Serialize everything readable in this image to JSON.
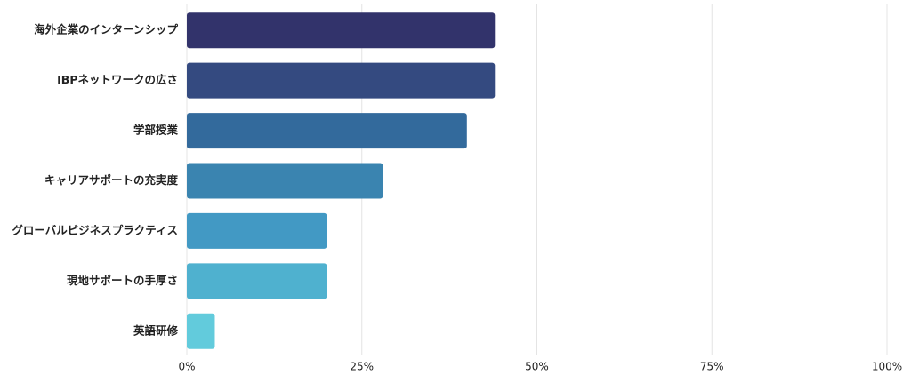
{
  "chart_data": {
    "type": "hbar",
    "categories": [
      "海外企業のインターンシップ",
      "IBPネットワークの広さ",
      "学部授業",
      "キャリアサポートの充実度",
      "グローバルビジネスプラクティス",
      "現地サポートの手厚さ",
      "英語研修"
    ],
    "values": [
      44,
      44,
      40,
      28,
      20,
      20,
      4
    ],
    "colors": [
      "#32336b",
      "#344a80",
      "#336a9c",
      "#3a84b0",
      "#4299c4",
      "#4fb1cf",
      "#62cbdc"
    ],
    "xlim": [
      0,
      100
    ],
    "xticks": [
      {
        "value": 0,
        "label": "0%"
      },
      {
        "value": 25,
        "label": "25%"
      },
      {
        "value": 50,
        "label": "50%"
      },
      {
        "value": 75,
        "label": "75%"
      },
      {
        "value": 100,
        "label": "100%"
      }
    ],
    "grid": true
  }
}
